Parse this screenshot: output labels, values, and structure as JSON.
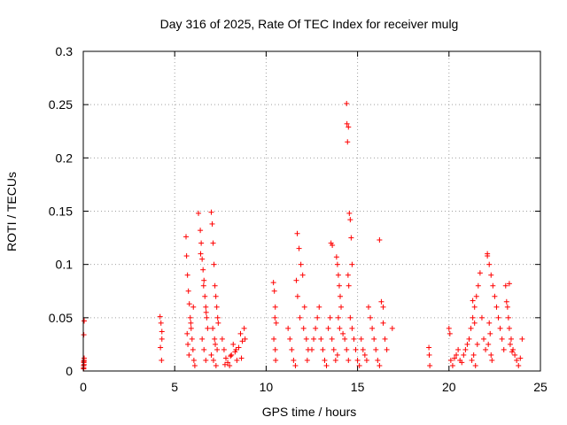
{
  "chart_data": {
    "type": "scatter",
    "title": "Day 316 of 2025, Rate Of TEC Index for receiver mulg",
    "xlabel": "GPS time / hours",
    "ylabel": "ROTI / TECUs",
    "xlim": [
      0,
      25
    ],
    "ylim": [
      0,
      0.3
    ],
    "x_ticks": [
      "0",
      "5",
      "10",
      "15",
      "20",
      "25"
    ],
    "y_ticks": [
      "0",
      "0.05",
      "0.1",
      "0.15",
      "0.2",
      "0.25",
      "0.3"
    ],
    "grid": true,
    "marker": "+",
    "color": "#ff0000",
    "x": [
      0.02,
      0.03,
      0.05,
      0.02,
      0.04,
      0.03,
      0.05,
      0.02,
      0.04,
      0.03,
      4.2,
      4.25,
      4.3,
      4.22,
      4.28,
      4.3,
      5.62,
      5.65,
      5.7,
      5.75,
      5.8,
      5.85,
      5.9,
      5.95,
      6.0,
      6.05,
      6.1,
      5.68,
      5.72,
      5.78,
      5.88,
      6.02,
      6.3,
      6.4,
      6.45,
      6.5,
      6.55,
      6.6,
      6.65,
      6.7,
      6.75,
      6.8,
      6.5,
      6.6,
      6.7,
      6.42,
      6.58,
      6.72,
      7.0,
      7.05,
      7.1,
      7.15,
      7.2,
      7.25,
      7.3,
      7.35,
      7.08,
      7.18,
      7.22,
      7.32,
      7.0,
      7.12,
      7.26,
      7.38,
      7.6,
      7.7,
      7.8,
      7.9,
      8.0,
      8.1,
      8.2,
      8.3,
      8.4,
      8.5,
      8.6,
      8.7,
      8.8,
      7.75,
      8.05,
      8.35,
      8.65,
      8.85,
      10.4,
      10.45,
      10.5,
      10.55,
      10.42,
      10.5,
      10.52,
      10.48,
      11.2,
      11.3,
      11.4,
      11.5,
      11.6,
      11.7,
      11.8,
      11.9,
      12.0,
      12.1,
      12.2,
      12.3,
      11.65,
      11.72,
      11.85,
      12.05,
      12.25,
      12.5,
      12.6,
      12.7,
      12.8,
      12.9,
      13.0,
      13.1,
      13.2,
      13.3,
      13.4,
      13.5,
      13.6,
      13.7,
      13.8,
      13.9,
      13.55,
      13.62,
      13.85,
      13.9,
      13.95,
      14.0,
      14.05,
      14.1,
      13.95,
      14.02,
      14.2,
      14.3,
      14.4,
      14.5,
      14.6,
      14.7,
      14.8,
      14.9,
      15.0,
      15.1,
      15.2,
      15.3,
      15.4,
      15.5,
      14.4,
      14.42,
      14.45,
      14.5,
      14.55,
      14.6,
      14.65,
      14.7,
      14.48,
      14.52,
      15.6,
      15.7,
      15.8,
      15.9,
      16.0,
      16.1,
      16.2,
      16.3,
      16.4,
      16.5,
      16.6,
      16.2,
      16.4,
      16.9,
      18.9,
      18.92,
      18.95,
      20.0,
      20.05,
      20.1,
      20.2,
      20.3,
      20.4,
      20.5,
      20.6,
      20.7,
      20.8,
      20.9,
      21.0,
      21.1,
      21.2,
      21.3,
      21.4,
      21.5,
      21.6,
      21.7,
      21.8,
      21.9,
      22.0,
      21.25,
      21.35,
      21.45,
      21.55,
      21.3,
      21.4,
      22.1,
      22.2,
      22.3,
      22.4,
      22.5,
      22.6,
      22.7,
      22.8,
      22.9,
      23.0,
      22.15,
      22.2,
      22.25,
      22.3,
      22.35,
      22.1,
      23.1,
      23.2,
      23.3,
      23.4,
      23.5,
      23.6,
      23.7,
      23.8,
      23.9,
      24.0,
      23.15,
      23.25,
      23.35,
      23.45,
      23.3
    ],
    "y": [
      0.005,
      0.008,
      0.012,
      0.002,
      0.01,
      0.034,
      0.047,
      0.003,
      0.006,
      0.009,
      0.051,
      0.045,
      0.037,
      0.022,
      0.01,
      0.03,
      0.126,
      0.108,
      0.09,
      0.075,
      0.063,
      0.05,
      0.04,
      0.03,
      0.02,
      0.01,
      0.005,
      0.035,
      0.025,
      0.015,
      0.045,
      0.06,
      0.148,
      0.132,
      0.12,
      0.105,
      0.095,
      0.085,
      0.07,
      0.06,
      0.05,
      0.04,
      0.03,
      0.02,
      0.01,
      0.11,
      0.08,
      0.055,
      0.149,
      0.138,
      0.12,
      0.1,
      0.08,
      0.07,
      0.06,
      0.05,
      0.04,
      0.03,
      0.025,
      0.02,
      0.015,
      0.01,
      0.005,
      0.045,
      0.03,
      0.02,
      0.012,
      0.008,
      0.005,
      0.015,
      0.025,
      0.018,
      0.01,
      0.022,
      0.035,
      0.028,
      0.04,
      0.006,
      0.014,
      0.02,
      0.012,
      0.03,
      0.083,
      0.075,
      0.06,
      0.045,
      0.03,
      0.02,
      0.01,
      0.05,
      0.04,
      0.03,
      0.02,
      0.01,
      0.005,
      0.129,
      0.115,
      0.1,
      0.09,
      0.06,
      0.03,
      0.02,
      0.085,
      0.07,
      0.05,
      0.04,
      0.01,
      0.02,
      0.03,
      0.04,
      0.05,
      0.06,
      0.03,
      0.02,
      0.01,
      0.005,
      0.04,
      0.05,
      0.03,
      0.02,
      0.01,
      0.015,
      0.12,
      0.118,
      0.107,
      0.1,
      0.09,
      0.08,
      0.07,
      0.06,
      0.05,
      0.04,
      0.035,
      0.03,
      0.02,
      0.01,
      0.05,
      0.04,
      0.03,
      0.02,
      0.01,
      0.005,
      0.03,
      0.02,
      0.015,
      0.01,
      0.251,
      0.232,
      0.215,
      0.229,
      0.148,
      0.142,
      0.125,
      0.1,
      0.09,
      0.08,
      0.06,
      0.05,
      0.04,
      0.03,
      0.02,
      0.01,
      0.005,
      0.065,
      0.045,
      0.03,
      0.02,
      0.123,
      0.06,
      0.04,
      0.022,
      0.015,
      0.005,
      0.04,
      0.035,
      0.01,
      0.005,
      0.012,
      0.015,
      0.02,
      0.01,
      0.008,
      0.015,
      0.02,
      0.025,
      0.03,
      0.04,
      0.05,
      0.06,
      0.07,
      0.08,
      0.092,
      0.05,
      0.03,
      0.02,
      0.01,
      0.015,
      0.005,
      0.025,
      0.066,
      0.045,
      0.11,
      0.1,
      0.09,
      0.08,
      0.07,
      0.06,
      0.05,
      0.04,
      0.03,
      0.02,
      0.025,
      0.045,
      0.035,
      0.015,
      0.01,
      0.108,
      0.08,
      0.06,
      0.04,
      0.03,
      0.02,
      0.015,
      0.01,
      0.005,
      0.012,
      0.03,
      0.065,
      0.05,
      0.025,
      0.018,
      0.082
    ]
  }
}
